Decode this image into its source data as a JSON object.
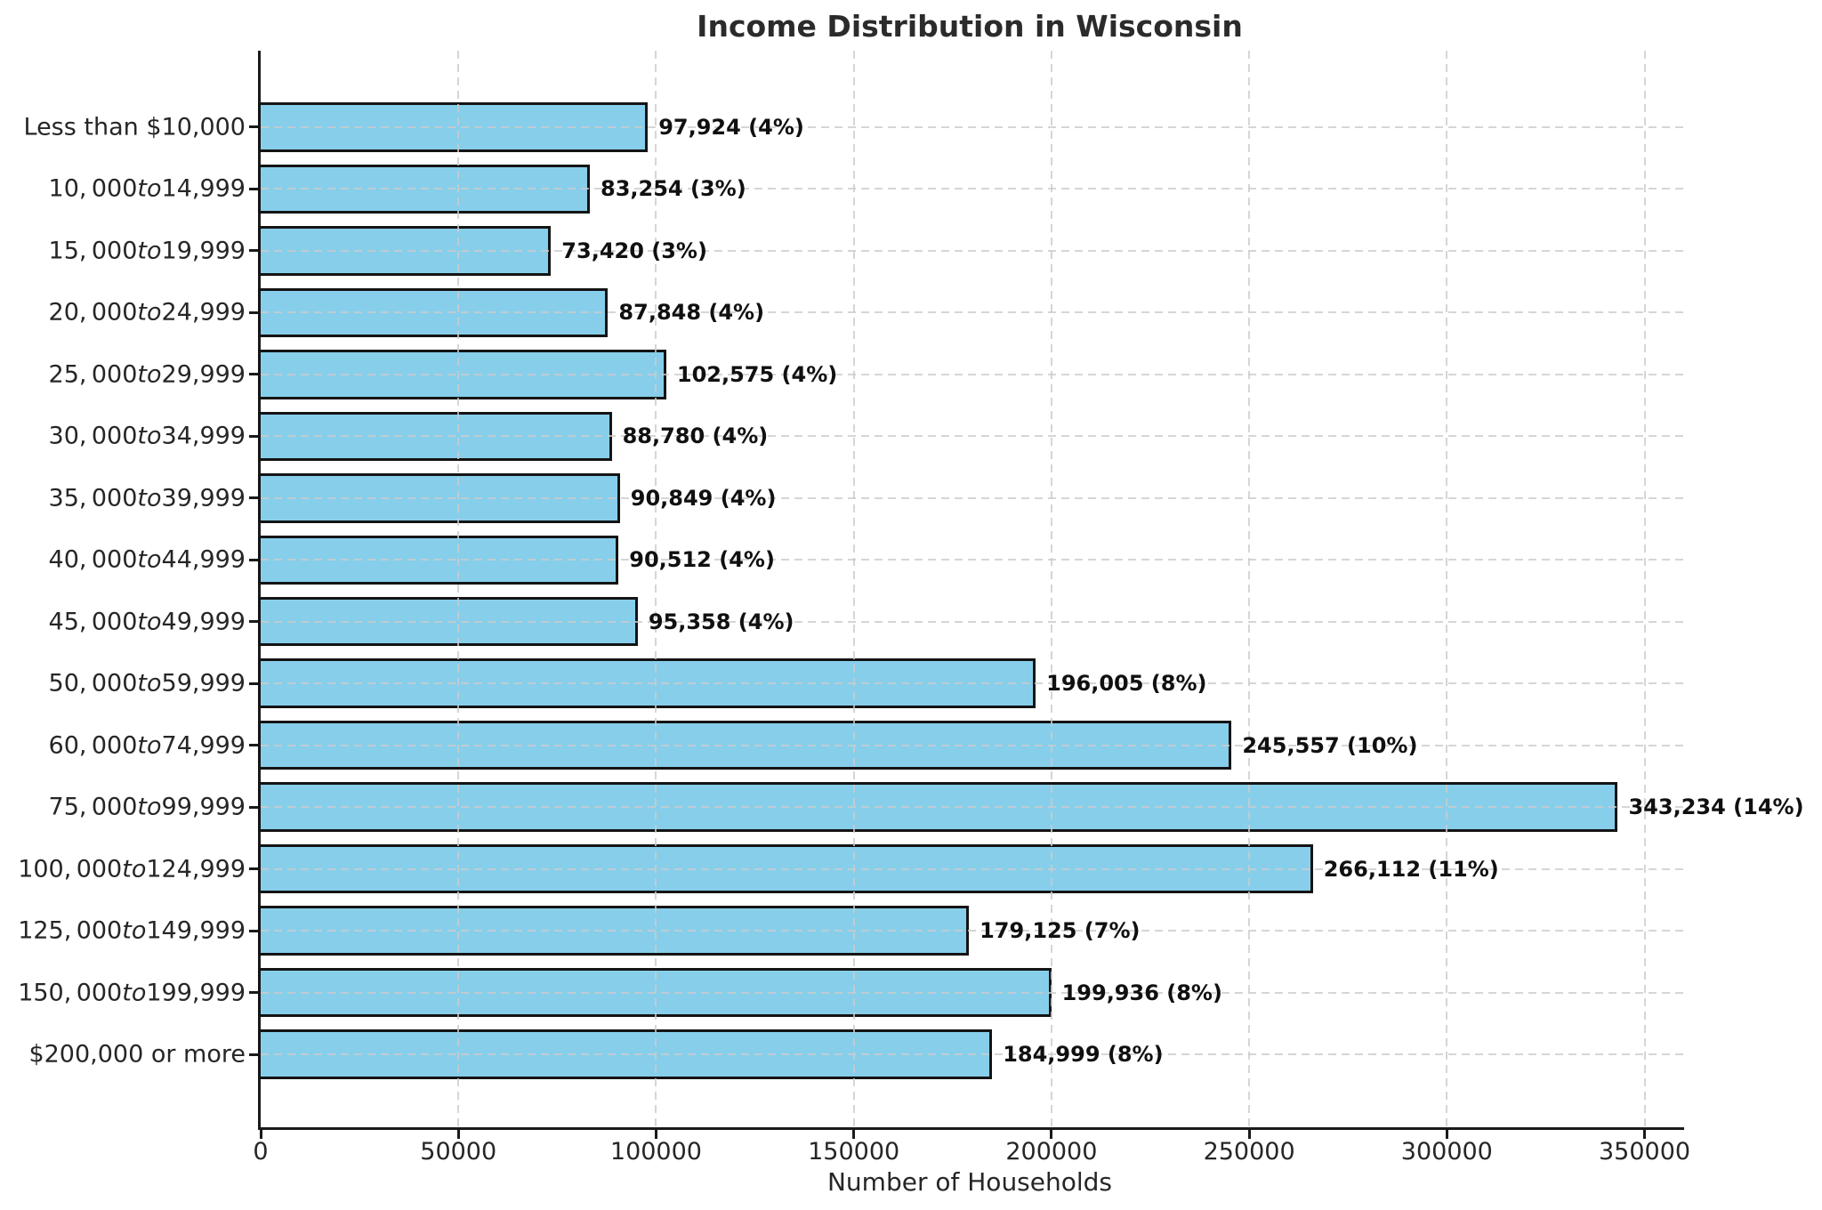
{
  "chart_data": {
    "type": "bar",
    "orientation": "horizontal",
    "title": "Income Distribution in Wisconsin",
    "xlabel": "Number of Households",
    "ylabel": "",
    "xlim": [
      0,
      360000
    ],
    "xticks": [
      0,
      50000,
      100000,
      150000,
      200000,
      250000,
      300000,
      350000
    ],
    "grid": "dashed-both-axes",
    "legend": "none",
    "colors": {
      "bar_fill": "#87CEEB",
      "bar_edge": "#141414",
      "grid": "#cbcbcb",
      "axis": "#1a1a1a",
      "text": "#262626"
    },
    "categories": [
      {
        "label_pre": "Less than $10,000",
        "label_italic": "",
        "label_post": "",
        "value": 97924,
        "percent": 4,
        "annotation": "97,924 (4%)"
      },
      {
        "label_pre": "10, 000",
        "label_italic": "to",
        "label_post": "14,999",
        "value": 83254,
        "percent": 3,
        "annotation": "83,254 (3%)"
      },
      {
        "label_pre": "15, 000",
        "label_italic": "to",
        "label_post": "19,999",
        "value": 73420,
        "percent": 3,
        "annotation": "73,420 (3%)"
      },
      {
        "label_pre": "20, 000",
        "label_italic": "to",
        "label_post": "24,999",
        "value": 87848,
        "percent": 4,
        "annotation": "87,848 (4%)"
      },
      {
        "label_pre": "25, 000",
        "label_italic": "to",
        "label_post": "29,999",
        "value": 102575,
        "percent": 4,
        "annotation": "102,575 (4%)"
      },
      {
        "label_pre": "30, 000",
        "label_italic": "to",
        "label_post": "34,999",
        "value": 88780,
        "percent": 4,
        "annotation": "88,780 (4%)"
      },
      {
        "label_pre": "35, 000",
        "label_italic": "to",
        "label_post": "39,999",
        "value": 90849,
        "percent": 4,
        "annotation": "90,849 (4%)"
      },
      {
        "label_pre": "40, 000",
        "label_italic": "to",
        "label_post": "44,999",
        "value": 90512,
        "percent": 4,
        "annotation": "90,512 (4%)"
      },
      {
        "label_pre": "45, 000",
        "label_italic": "to",
        "label_post": "49,999",
        "value": 95358,
        "percent": 4,
        "annotation": "95,358 (4%)"
      },
      {
        "label_pre": "50, 000",
        "label_italic": "to",
        "label_post": "59,999",
        "value": 196005,
        "percent": 8,
        "annotation": "196,005 (8%)"
      },
      {
        "label_pre": "60, 000",
        "label_italic": "to",
        "label_post": "74,999",
        "value": 245557,
        "percent": 10,
        "annotation": "245,557 (10%)"
      },
      {
        "label_pre": "75, 000",
        "label_italic": "to",
        "label_post": "99,999",
        "value": 343234,
        "percent": 14,
        "annotation": "343,234 (14%)"
      },
      {
        "label_pre": "100, 000",
        "label_italic": "to",
        "label_post": "124,999",
        "value": 266112,
        "percent": 11,
        "annotation": "266,112 (11%)"
      },
      {
        "label_pre": "125, 000",
        "label_italic": "to",
        "label_post": "149,999",
        "value": 179125,
        "percent": 7,
        "annotation": "179,125 (7%)"
      },
      {
        "label_pre": "150, 000",
        "label_italic": "to",
        "label_post": "199,999",
        "value": 199936,
        "percent": 8,
        "annotation": "199,936 (8%)"
      },
      {
        "label_pre": "$200,000 or more",
        "label_italic": "",
        "label_post": "",
        "value": 184999,
        "percent": 8,
        "annotation": "184,999 (8%)"
      }
    ]
  }
}
